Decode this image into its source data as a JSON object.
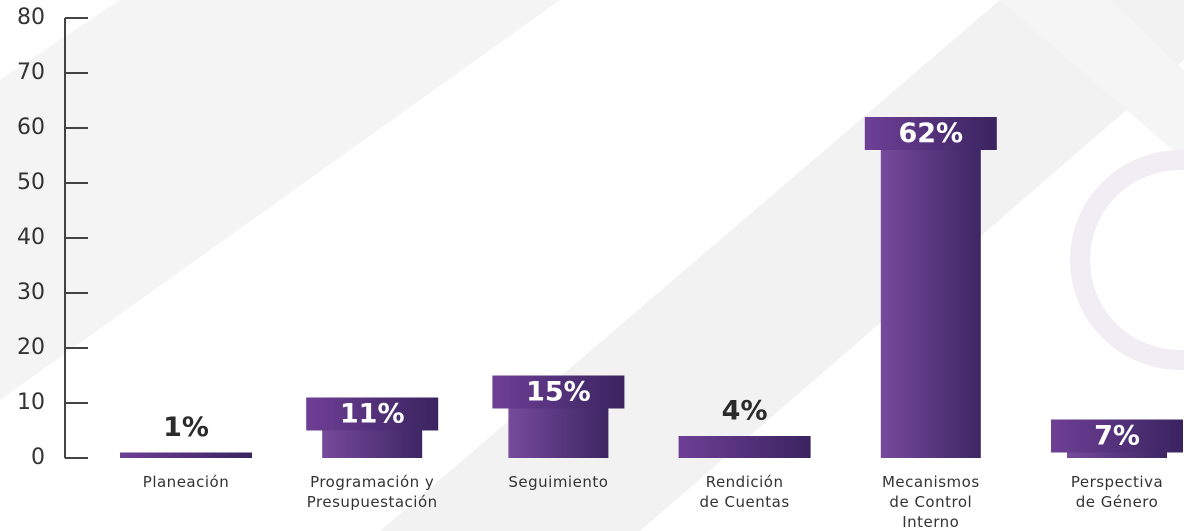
{
  "chart_data": {
    "type": "bar",
    "categories": [
      "Planeación",
      "Programación y\nPresupuestación",
      "Seguimiento",
      "Rendición\nde Cuentas",
      "Mecanismos\nde Control\nInterno",
      "Perspectiva\nde Género"
    ],
    "values": [
      1,
      11,
      15,
      4,
      62,
      7
    ],
    "value_labels": [
      "1%",
      "11%",
      "15%",
      "4%",
      "62%",
      "7%"
    ],
    "color": "#5b3480",
    "ylim": [
      0,
      80
    ],
    "yticks": [
      0,
      10,
      20,
      30,
      40,
      50,
      60,
      70,
      80
    ]
  }
}
